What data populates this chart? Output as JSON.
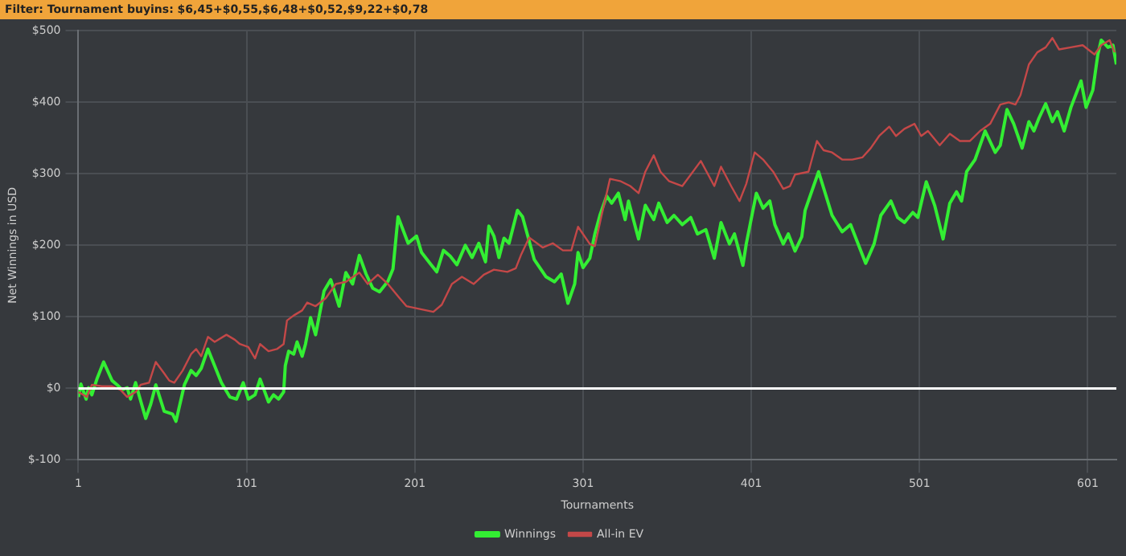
{
  "chart_data": {
    "type": "line",
    "title": "Filter: Tournament buyins: $6,45+$0,55,$6,48+$0,52,$9,22+$0,78",
    "xlabel": "Tournaments",
    "ylabel": "Net Winnings in USD",
    "xlim": [
      1,
      618
    ],
    "xticks": [
      1,
      101,
      201,
      301,
      401,
      501,
      601
    ],
    "ylim": [
      -100,
      500
    ],
    "yticks": [
      {
        "value": -100,
        "label": "$-100"
      },
      {
        "value": 0,
        "label": "$0"
      },
      {
        "value": 100,
        "label": "$100"
      },
      {
        "value": 200,
        "label": "$200"
      },
      {
        "value": 300,
        "label": "$300"
      },
      {
        "value": 400,
        "label": "$400"
      },
      {
        "value": 500,
        "label": "$500"
      }
    ],
    "grid": true,
    "legend": "bottom",
    "marker": "none",
    "line_style": "solid",
    "ref_lines": [
      {
        "axis": "y",
        "value": 0,
        "label": null,
        "color": "#ffffff"
      }
    ],
    "series": [
      {
        "name": "Winnings",
        "color": "#33ee33",
        "x": [
          1,
          2.5,
          5.6,
          7,
          9,
          12,
          16,
          21,
          24,
          27,
          30,
          32,
          35,
          37,
          41,
          44,
          47,
          52,
          57,
          59,
          64,
          68,
          71,
          74,
          78,
          86,
          91,
          95,
          99,
          102,
          106,
          109,
          114,
          117,
          120,
          123,
          124,
          126,
          129,
          131,
          134,
          136,
          139,
          142,
          147,
          151,
          156,
          160,
          164,
          168,
          172,
          176,
          180,
          185,
          188,
          191,
          197,
          202,
          205,
          210,
          214,
          218,
          222,
          226,
          231,
          235,
          239,
          243,
          245,
          248,
          251,
          254,
          257,
          262,
          265,
          272,
          279,
          284,
          288,
          292,
          296,
          298,
          301,
          305,
          308,
          311,
          315,
          318,
          322,
          326,
          328,
          334,
          338,
          343,
          346,
          351,
          355,
          360,
          365,
          369,
          374,
          379,
          383,
          388,
          391,
          396,
          398,
          404,
          408,
          412,
          415,
          420,
          423,
          427,
          431,
          433,
          441,
          449,
          455,
          460,
          469,
          474,
          478,
          484,
          488,
          492,
          497,
          500,
          505,
          510,
          515,
          519,
          523,
          526,
          529,
          534,
          540,
          546,
          549,
          553,
          557,
          562,
          566,
          569,
          572,
          576,
          580,
          583,
          587,
          591,
          597,
          600,
          604,
          607,
          609,
          613,
          616,
          618
        ],
        "values": [
          -12,
          6,
          -15,
          1,
          -9,
          13,
          37,
          11,
          5,
          -2,
          1,
          -15,
          8,
          -9,
          -42,
          -22,
          5,
          -32,
          -36,
          -46,
          5,
          25,
          18,
          28,
          55,
          8,
          -12,
          -15,
          8,
          -15,
          -9,
          13,
          -19,
          -9,
          -15,
          -5,
          32,
          52,
          48,
          65,
          45,
          62,
          99,
          75,
          136,
          152,
          115,
          162,
          146,
          186,
          160,
          140,
          135,
          150,
          167,
          240,
          203,
          213,
          190,
          175,
          163,
          193,
          185,
          173,
          200,
          183,
          203,
          177,
          227,
          213,
          183,
          210,
          203,
          249,
          240,
          180,
          156,
          149,
          160,
          119,
          146,
          190,
          169,
          182,
          216,
          242,
          269,
          259,
          273,
          236,
          262,
          209,
          256,
          236,
          259,
          232,
          242,
          229,
          239,
          216,
          222,
          182,
          232,
          202,
          216,
          172,
          202,
          273,
          252,
          262,
          229,
          202,
          216,
          192,
          212,
          249,
          303,
          242,
          219,
          229,
          175,
          202,
          242,
          262,
          239,
          232,
          246,
          239,
          289,
          256,
          209,
          259,
          275,
          262,
          303,
          320,
          360,
          330,
          340,
          390,
          370,
          336,
          373,
          360,
          378,
          398,
          373,
          387,
          360,
          393,
          430,
          393,
          417,
          467,
          487,
          477,
          480,
          453
        ]
      },
      {
        "name": "All-in EV",
        "color": "#c44848",
        "x": [
          1,
          6,
          9,
          15,
          21,
          26,
          30,
          35,
          38,
          43,
          47,
          52,
          55,
          58,
          63,
          68,
          71,
          74,
          78,
          82,
          89,
          94,
          97,
          102,
          106,
          109,
          114,
          119,
          123,
          125,
          129,
          134,
          137,
          142,
          148,
          154,
          160,
          168,
          173,
          179,
          185,
          192,
          196,
          204,
          212,
          217,
          223,
          229,
          236,
          242,
          248,
          256,
          261,
          264,
          269,
          277,
          283,
          289,
          294,
          298,
          305,
          308,
          312,
          317,
          323,
          329,
          334,
          338,
          343,
          347,
          352,
          360,
          371,
          379,
          383,
          389,
          394,
          398,
          403,
          408,
          414,
          420,
          424,
          427,
          435,
          440,
          444,
          449,
          455,
          461,
          467,
          472,
          477,
          483,
          487,
          492,
          498,
          502,
          506,
          513,
          519,
          525,
          531,
          537,
          543,
          549,
          554,
          558,
          561,
          566,
          571,
          576,
          580,
          584,
          591,
          598,
          605,
          609,
          614,
          617
        ],
        "values": [
          -5,
          -12,
          5,
          3,
          3,
          -2,
          -12,
          -5,
          5,
          8,
          37,
          21,
          11,
          8,
          25,
          48,
          55,
          45,
          72,
          65,
          75,
          68,
          62,
          58,
          42,
          62,
          52,
          55,
          62,
          95,
          102,
          109,
          120,
          115,
          126,
          146,
          149,
          162,
          146,
          159,
          146,
          126,
          115,
          111,
          107,
          117,
          146,
          156,
          146,
          159,
          166,
          163,
          168,
          186,
          211,
          197,
          203,
          193,
          193,
          226,
          202,
          199,
          242,
          293,
          290,
          283,
          273,
          303,
          326,
          303,
          290,
          283,
          318,
          283,
          310,
          283,
          262,
          286,
          330,
          320,
          303,
          279,
          283,
          299,
          303,
          346,
          333,
          330,
          320,
          320,
          323,
          336,
          353,
          366,
          353,
          363,
          370,
          353,
          360,
          340,
          356,
          346,
          346,
          360,
          370,
          397,
          400,
          397,
          410,
          453,
          470,
          477,
          490,
          474,
          477,
          480,
          467,
          480,
          487,
          470
        ]
      }
    ]
  }
}
